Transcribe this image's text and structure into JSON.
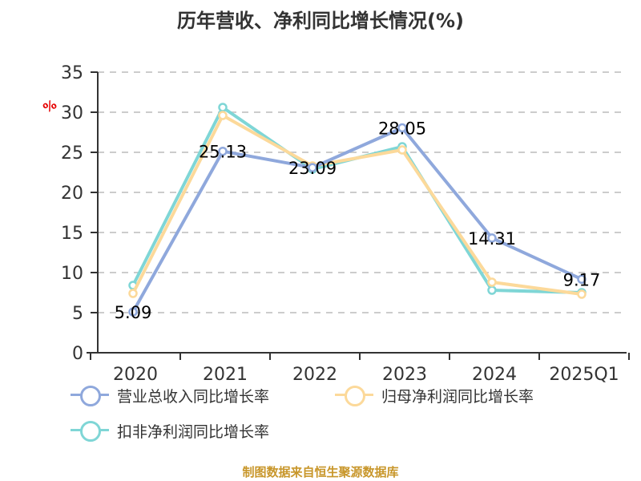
{
  "title": "历年营收、净利同比增长情况(%)",
  "y_unit_icon": "%",
  "source": "制图数据来自恒生聚源数据库",
  "colors": {
    "revenue": "#8fa8dc",
    "parent_profit": "#fcd99a",
    "deducted_profit": "#7fd6d6",
    "axis": "#333333",
    "grid": "#cccccc",
    "unit_icon": "#e60000"
  },
  "legend": [
    {
      "label": "营业总收入同比增长率",
      "color": "#8fa8dc"
    },
    {
      "label": "归母净利润同比增长率",
      "color": "#fcd99a"
    },
    {
      "label": "扣非净利润同比增长率",
      "color": "#7fd6d6"
    }
  ],
  "chart_data": {
    "type": "line",
    "title": "历年营收、净利同比增长情况(%)",
    "xlabel": "",
    "ylabel": "%",
    "categories": [
      "2020",
      "2021",
      "2022",
      "2023",
      "2024",
      "2025Q1"
    ],
    "ylim": [
      0,
      35
    ],
    "yticks": [
      0,
      5,
      10,
      15,
      20,
      25,
      30,
      35
    ],
    "grid": true,
    "legend_position": "bottom",
    "series": [
      {
        "name": "营业总收入同比增长率",
        "color": "#8fa8dc",
        "values": [
          5.09,
          25.13,
          23.09,
          28.05,
          14.31,
          9.17
        ],
        "labels": [
          "5.09",
          "25.13",
          "23.09",
          "28.05",
          "14.31",
          "9.17"
        ]
      },
      {
        "name": "归母净利润同比增长率",
        "color": "#fcd99a",
        "values": [
          7.4,
          29.6,
          23.3,
          25.3,
          8.8,
          7.3
        ]
      },
      {
        "name": "扣非净利润同比增长率",
        "color": "#7fd6d6",
        "values": [
          8.4,
          30.6,
          22.9,
          25.7,
          7.8,
          7.5
        ]
      }
    ]
  }
}
